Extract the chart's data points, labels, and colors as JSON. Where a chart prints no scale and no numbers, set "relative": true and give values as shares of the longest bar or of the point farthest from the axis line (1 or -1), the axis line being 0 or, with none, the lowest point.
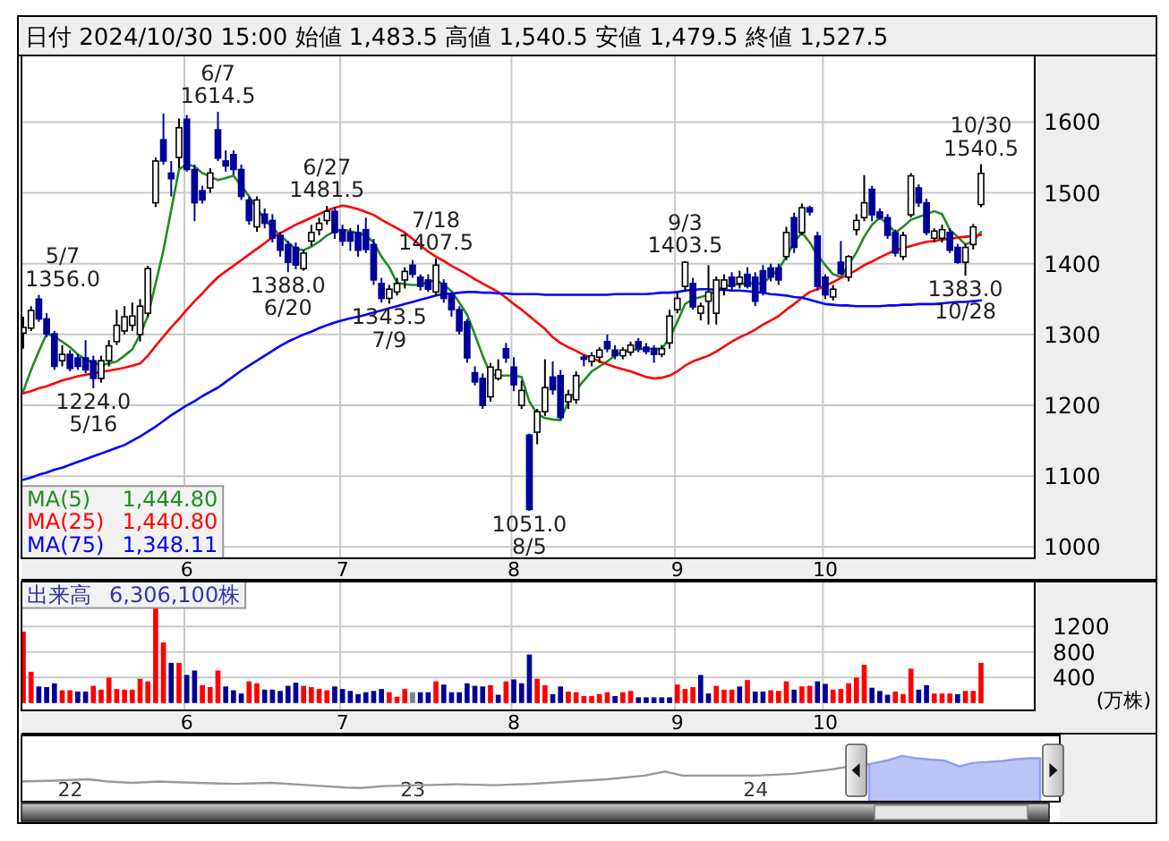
{
  "chart_data": [
    {
      "type": "candlestick",
      "title": "日付 2024/10/30 15:00 始値 1,483.5 高値 1,540.5 安値 1,479.5 終値 1,527.5",
      "categories": [
        null,
        null,
        null,
        null,
        null,
        null,
        null,
        null,
        null,
        null,
        null,
        null,
        null,
        null,
        null,
        null,
        null,
        null,
        null,
        null,
        null,
        "6",
        null,
        null,
        null,
        null,
        null,
        null,
        null,
        null,
        null,
        null,
        null,
        null,
        null,
        null,
        null,
        null,
        null,
        null,
        null,
        "7",
        null,
        null,
        null,
        null,
        null,
        null,
        null,
        null,
        null,
        null,
        null,
        null,
        null,
        null,
        null,
        null,
        null,
        null,
        null,
        null,
        null,
        "8",
        null,
        null,
        null,
        null,
        null,
        null,
        null,
        null,
        null,
        null,
        null,
        null,
        null,
        null,
        null,
        null,
        null,
        null,
        null,
        null,
        "9",
        null,
        null,
        null,
        null,
        null,
        null,
        null,
        null,
        null,
        null,
        null,
        null,
        null,
        null,
        null,
        null,
        null,
        null,
        "10",
        null,
        null,
        null,
        null,
        null,
        null,
        null,
        null,
        null,
        null,
        null,
        null,
        null,
        null,
        null,
        null,
        null,
        null,
        null,
        null
      ],
      "ohlc": [
        [
          1302,
          1325,
          1280,
          1310
        ],
        [
          1309,
          1340,
          1305,
          1334
        ],
        [
          1350,
          1356,
          1318,
          1322
        ],
        [
          1322,
          1330,
          1296,
          1301
        ],
        [
          1301,
          1305,
          1250,
          1255
        ],
        [
          1263,
          1285,
          1255,
          1272
        ],
        [
          1272,
          1278,
          1248,
          1252
        ],
        [
          1267,
          1272,
          1250,
          1255
        ],
        [
          1267,
          1292,
          1245,
          1250
        ],
        [
          1263,
          1270,
          1224,
          1238
        ],
        [
          1238,
          1270,
          1232,
          1263
        ],
        [
          1263,
          1292,
          1255,
          1284
        ],
        [
          1290,
          1335,
          1285,
          1313
        ],
        [
          1305,
          1340,
          1300,
          1325
        ],
        [
          1313,
          1345,
          1305,
          1326
        ],
        [
          1300,
          1350,
          1290,
          1340
        ],
        [
          1330,
          1397,
          1325,
          1393
        ],
        [
          1486,
          1550,
          1480,
          1545
        ],
        [
          1575,
          1612,
          1540,
          1545
        ],
        [
          1528,
          1545,
          1495,
          1520
        ],
        [
          1550,
          1605,
          1535,
          1592
        ],
        [
          1604,
          1610,
          1530,
          1533
        ],
        [
          1533,
          1540,
          1460,
          1486
        ],
        [
          1503,
          1510,
          1485,
          1490
        ],
        [
          1507,
          1535,
          1500,
          1528
        ],
        [
          1589,
          1614.5,
          1545,
          1549
        ],
        [
          1545,
          1560,
          1530,
          1538
        ],
        [
          1554,
          1560,
          1525,
          1533
        ],
        [
          1533,
          1540,
          1490,
          1495
        ],
        [
          1490,
          1495,
          1455,
          1461
        ],
        [
          1452,
          1495,
          1445,
          1490
        ],
        [
          1470,
          1478,
          1450,
          1457
        ],
        [
          1461,
          1470,
          1430,
          1436
        ],
        [
          1440,
          1445,
          1410,
          1419
        ],
        [
          1427,
          1432,
          1388,
          1402
        ],
        [
          1423,
          1430,
          1392,
          1398
        ],
        [
          1393,
          1420,
          1390,
          1415
        ],
        [
          1432,
          1455,
          1425,
          1444
        ],
        [
          1448,
          1465,
          1440,
          1457
        ],
        [
          1461,
          1481.5,
          1455,
          1474
        ],
        [
          1474,
          1480,
          1435,
          1444
        ],
        [
          1448,
          1455,
          1425,
          1432
        ],
        [
          1444,
          1450,
          1418,
          1432
        ],
        [
          1444,
          1455,
          1410,
          1419
        ],
        [
          1448,
          1465,
          1415,
          1420
        ],
        [
          1427,
          1435,
          1370,
          1377
        ],
        [
          1372,
          1380,
          1345,
          1351
        ],
        [
          1351,
          1370,
          1343.5,
          1364
        ],
        [
          1360,
          1380,
          1355,
          1372
        ],
        [
          1377,
          1395,
          1365,
          1389
        ],
        [
          1398,
          1405,
          1380,
          1385
        ],
        [
          1381,
          1385,
          1362,
          1368
        ],
        [
          1377,
          1385,
          1360,
          1364
        ],
        [
          1360,
          1407.5,
          1355,
          1398
        ],
        [
          1372,
          1378,
          1345,
          1351
        ],
        [
          1356,
          1360,
          1325,
          1335
        ],
        [
          1335,
          1340,
          1300,
          1305
        ],
        [
          1318,
          1322,
          1260,
          1267
        ],
        [
          1246,
          1255,
          1228,
          1233
        ],
        [
          1238,
          1245,
          1195,
          1200
        ],
        [
          1212,
          1260,
          1205,
          1254
        ],
        [
          1238,
          1265,
          1235,
          1250
        ],
        [
          1280,
          1288,
          1260,
          1267
        ],
        [
          1254,
          1268,
          1220,
          1229
        ],
        [
          1200,
          1235,
          1195,
          1221
        ],
        [
          1158,
          1160,
          1051,
          1053
        ],
        [
          1162,
          1195,
          1145,
          1191
        ],
        [
          1191,
          1265,
          1185,
          1225
        ],
        [
          1240,
          1262,
          1215,
          1222
        ],
        [
          1242,
          1250,
          1180,
          1183
        ],
        [
          1205,
          1222,
          1195,
          1215
        ],
        [
          1208,
          1248,
          1202,
          1242
        ],
        [
          1268,
          1272,
          1255,
          1265
        ],
        [
          1262,
          1275,
          1255,
          1270
        ],
        [
          1268,
          1282,
          1260,
          1278
        ],
        [
          1290,
          1300,
          1275,
          1280
        ],
        [
          1278,
          1285,
          1265,
          1270
        ],
        [
          1270,
          1282,
          1265,
          1278
        ],
        [
          1275,
          1290,
          1270,
          1285
        ],
        [
          1290,
          1295,
          1275,
          1280
        ],
        [
          1282,
          1288,
          1272,
          1276
        ],
        [
          1280,
          1285,
          1260,
          1272
        ],
        [
          1272,
          1285,
          1268,
          1280
        ],
        [
          1288,
          1335,
          1280,
          1326
        ],
        [
          1335,
          1360,
          1330,
          1351
        ],
        [
          1368,
          1403.5,
          1360,
          1402
        ],
        [
          1372,
          1380,
          1335,
          1339
        ],
        [
          1330,
          1345,
          1320,
          1340
        ],
        [
          1347,
          1398,
          1314,
          1360
        ],
        [
          1330,
          1382,
          1314,
          1377
        ],
        [
          1365,
          1385,
          1355,
          1377
        ],
        [
          1381,
          1388,
          1362,
          1368
        ],
        [
          1372,
          1390,
          1365,
          1381
        ],
        [
          1385,
          1395,
          1365,
          1368
        ],
        [
          1381,
          1388,
          1340,
          1347
        ],
        [
          1390,
          1398,
          1355,
          1360
        ],
        [
          1394,
          1400,
          1375,
          1381
        ],
        [
          1394,
          1400,
          1370,
          1377
        ],
        [
          1410,
          1452,
          1405,
          1444
        ],
        [
          1465,
          1472,
          1415,
          1423
        ],
        [
          1444,
          1485,
          1440,
          1479
        ],
        [
          1479,
          1482,
          1468,
          1473
        ],
        [
          1439,
          1445,
          1362,
          1368
        ],
        [
          1381,
          1385,
          1350,
          1356
        ],
        [
          1353,
          1370,
          1348,
          1364
        ],
        [
          1402,
          1432,
          1384,
          1386
        ],
        [
          1381,
          1412,
          1375,
          1410
        ],
        [
          1448,
          1470,
          1440,
          1461
        ],
        [
          1465,
          1525,
          1460,
          1486
        ],
        [
          1505,
          1510,
          1460,
          1469
        ],
        [
          1473,
          1478,
          1462,
          1465
        ],
        [
          1465,
          1470,
          1435,
          1440
        ],
        [
          1444,
          1448,
          1410,
          1415
        ],
        [
          1410,
          1445,
          1405,
          1440
        ],
        [
          1469,
          1528,
          1465,
          1524
        ],
        [
          1507,
          1512,
          1480,
          1486
        ],
        [
          1486,
          1492,
          1440,
          1444
        ],
        [
          1436,
          1450,
          1430,
          1446
        ],
        [
          1436,
          1455,
          1430,
          1448
        ],
        [
          1444,
          1450,
          1415,
          1419
        ],
        [
          1423,
          1428,
          1400,
          1402
        ],
        [
          1402,
          1428,
          1383,
          1423
        ],
        [
          1427,
          1456,
          1420,
          1452
        ],
        [
          1483.5,
          1540.5,
          1479.5,
          1527.5
        ]
      ],
      "colors": [
        "#ffffff",
        "#ffffff",
        "#000099",
        "#000099",
        "#000099",
        "#ffffff",
        "#000099",
        "#000099",
        "#000099",
        "#000099",
        "#ffffff",
        "#ffffff",
        "#ffffff",
        "#ffffff",
        "#ffffff",
        "#ffffff",
        "#ffffff",
        "#ffffff",
        "#000099",
        "#000099",
        "#ffffff",
        "#000099",
        "#000099",
        "#000099",
        "#ffffff",
        "#000099",
        "#000099",
        "#000099",
        "#000099",
        "#000099",
        "#ffffff",
        "#000099",
        "#000099",
        "#000099",
        "#000099",
        "#000099",
        "#ffffff",
        "#ffffff",
        "#ffffff",
        "#ffffff",
        "#000099",
        "#000099",
        "#000099",
        "#000099",
        "#000099",
        "#000099",
        "#000099",
        "#ffffff",
        "#ffffff",
        "#ffffff",
        "#000099",
        "#000099",
        "#000099",
        "#ffffff",
        "#000099",
        "#000099",
        "#000099",
        "#000099",
        "#000099",
        "#000099",
        "#ffffff",
        "#ffffff",
        "#000099",
        "#000099",
        "#ffffff",
        "#000099",
        "#ffffff",
        "#ffffff",
        "#000099",
        "#000099",
        "#ffffff",
        "#ffffff",
        "#000099",
        "#ffffff",
        "#ffffff",
        "#000099",
        "#000099",
        "#ffffff",
        "#ffffff",
        "#000099",
        "#000099",
        "#000099",
        "#ffffff",
        "#ffffff",
        "#ffffff",
        "#ffffff",
        "#000099",
        "#ffffff",
        "#ffffff",
        "#ffffff",
        "#ffffff",
        "#000099",
        "#ffffff",
        "#000099",
        "#000099",
        "#000099",
        "#000099",
        "#000099",
        "#ffffff",
        "#000099",
        "#ffffff",
        "#000099",
        "#000099",
        "#000099",
        "#ffffff",
        "#000099",
        "#ffffff",
        "#ffffff",
        "#ffffff",
        "#000099",
        "#000099",
        "#000099",
        "#000099",
        "#ffffff",
        "#ffffff",
        "#000099",
        "#000099",
        "#ffffff",
        "#ffffff",
        "#000099",
        "#000099",
        "#ffffff",
        "#ffffff",
        "#ffffff"
      ],
      "value_labels": [
        null,
        null,
        "5/7\n1356.0",
        null,
        null,
        null,
        null,
        null,
        null,
        "1224.0\n5/16",
        null,
        null,
        null,
        null,
        null,
        null,
        null,
        null,
        null,
        null,
        null,
        null,
        null,
        null,
        null,
        "6/7\n1614.5",
        null,
        null,
        null,
        null,
        null,
        null,
        null,
        null,
        "1388.0\n6/20",
        null,
        null,
        null,
        null,
        "6/27\n1481.5",
        null,
        null,
        null,
        null,
        null,
        null,
        null,
        "1343.5\n7/9",
        null,
        null,
        null,
        null,
        null,
        "7/18\n1407.5",
        null,
        null,
        null,
        null,
        null,
        null,
        null,
        null,
        null,
        null,
        null,
        "1051.0\n8/5",
        null,
        null,
        null,
        null,
        null,
        null,
        null,
        null,
        null,
        null,
        null,
        null,
        null,
        null,
        null,
        null,
        null,
        null,
        null,
        "9/3\n1403.5",
        null,
        null,
        null,
        null,
        null,
        null,
        null,
        null,
        null,
        null,
        null,
        null,
        null,
        null,
        null,
        null,
        null,
        null,
        null,
        null,
        null,
        null,
        null,
        null,
        null,
        null,
        null,
        null,
        null,
        null,
        null,
        null,
        null,
        null,
        null,
        "1383.0\n10/28",
        null,
        "10/30\n1540.5"
      ],
      "series": [
        {
          "name": "MA(5)",
          "type": "line",
          "color": "#228b22",
          "values": [
            1220,
            1250,
            1276,
            1301,
            1297,
            1290,
            1282,
            1272,
            1265,
            1260,
            1257,
            1259,
            1262,
            1270,
            1279,
            1300,
            1326,
            1372,
            1419,
            1476,
            1533,
            1541,
            1537,
            1528,
            1523,
            1518,
            1521,
            1524,
            1510,
            1495,
            1478,
            1463,
            1451,
            1440,
            1430,
            1421,
            1419,
            1424,
            1431,
            1440,
            1446,
            1448,
            1446,
            1443,
            1440,
            1430,
            1410,
            1395,
            1373,
            1371,
            1370,
            1370,
            1374,
            1377,
            1370,
            1361,
            1345,
            1328,
            1300,
            1270,
            1244,
            1242,
            1242,
            1242,
            1240,
            1205,
            1188,
            1182,
            1180,
            1179,
            1205,
            1222,
            1235,
            1248,
            1255,
            1262,
            1270,
            1276,
            1278,
            1279,
            1280,
            1280,
            1280,
            1295,
            1318,
            1343,
            1350,
            1353,
            1356,
            1362,
            1368,
            1370,
            1371,
            1372,
            1372,
            1372,
            1382,
            1392,
            1410,
            1430,
            1444,
            1430,
            1412,
            1398,
            1385,
            1381,
            1398,
            1416,
            1438,
            1455,
            1465,
            1456,
            1444,
            1452,
            1462,
            1466,
            1470,
            1474,
            1470,
            1448,
            1438,
            1427,
            1432,
            1444.8
          ]
        },
        {
          "name": "MA(25)",
          "type": "line",
          "color": "#ff0000",
          "values": [
            1217,
            1220,
            1224,
            1227,
            1231,
            1235,
            1238,
            1241,
            1243,
            1245,
            1247,
            1249,
            1251,
            1253,
            1256,
            1259,
            1270,
            1284,
            1297,
            1310,
            1322,
            1335,
            1347,
            1358,
            1370,
            1381,
            1389,
            1397,
            1405,
            1413,
            1421,
            1429,
            1437,
            1443,
            1449,
            1455,
            1460,
            1465,
            1470,
            1475,
            1479,
            1482,
            1480,
            1477,
            1473,
            1469,
            1462,
            1456,
            1450,
            1444,
            1435,
            1426,
            1417,
            1410,
            1404,
            1397,
            1391,
            1385,
            1378,
            1372,
            1366,
            1360,
            1352,
            1343,
            1335,
            1326,
            1317,
            1308,
            1296,
            1288,
            1282,
            1277,
            1271,
            1267,
            1262,
            1258,
            1254,
            1251,
            1248,
            1244,
            1240,
            1238,
            1239,
            1242,
            1248,
            1256,
            1262,
            1266,
            1270,
            1276,
            1283,
            1290,
            1296,
            1301,
            1307,
            1314,
            1320,
            1326,
            1335,
            1343,
            1352,
            1360,
            1364,
            1369,
            1374,
            1380,
            1385,
            1391,
            1398,
            1403,
            1409,
            1414,
            1419,
            1422,
            1425,
            1428,
            1431,
            1432,
            1434,
            1435,
            1437,
            1438,
            1439,
            1440.8
          ]
        },
        {
          "name": "MA(75)",
          "type": "line",
          "color": "#0000ff",
          "values": [
            1095,
            1098,
            1102,
            1105,
            1109,
            1112,
            1116,
            1120,
            1124,
            1128,
            1132,
            1136,
            1140,
            1144,
            1150,
            1156,
            1163,
            1170,
            1178,
            1186,
            1193,
            1200,
            1206,
            1213,
            1219,
            1225,
            1233,
            1241,
            1249,
            1256,
            1263,
            1270,
            1277,
            1284,
            1290,
            1295,
            1300,
            1304,
            1309,
            1313,
            1317,
            1320,
            1323,
            1325,
            1328,
            1331,
            1334,
            1337,
            1340,
            1343,
            1346,
            1349,
            1352,
            1355,
            1357,
            1358,
            1359,
            1360,
            1360,
            1359,
            1359,
            1358,
            1358,
            1357,
            1357,
            1357,
            1357,
            1356,
            1356,
            1356,
            1356,
            1356,
            1356,
            1356,
            1356,
            1356,
            1357,
            1357,
            1357,
            1357,
            1357,
            1358,
            1359,
            1359,
            1360,
            1362,
            1363,
            1364,
            1364,
            1363,
            1363,
            1362,
            1362,
            1361,
            1360,
            1359,
            1357,
            1356,
            1355,
            1353,
            1352,
            1349,
            1346,
            1343,
            1342,
            1341,
            1341,
            1340,
            1340,
            1340,
            1340,
            1341,
            1341,
            1342,
            1342,
            1343,
            1343,
            1343,
            1344,
            1345,
            1346,
            1346,
            1347,
            1348.11
          ]
        }
      ],
      "annotations": [
        "1,444.80",
        "1,440.80",
        "1,348.11"
      ],
      "ylim": [
        984,
        1694
      ],
      "yticks": [
        1000,
        1100,
        1200,
        1300,
        1400,
        1500,
        1600
      ],
      "grid": true,
      "legend": "bottom left"
    },
    {
      "type": "bar",
      "ylabel": "(万株)",
      "categories": [
        null,
        null,
        null,
        null,
        null,
        null,
        null,
        null,
        null,
        null,
        null,
        null,
        null,
        null,
        null,
        null,
        null,
        null,
        null,
        null,
        null,
        "6",
        null,
        null,
        null,
        null,
        null,
        null,
        null,
        null,
        null,
        null,
        null,
        null,
        null,
        null,
        null,
        null,
        null,
        null,
        null,
        "7",
        null,
        null,
        null,
        null,
        null,
        null,
        null,
        null,
        null,
        null,
        null,
        null,
        null,
        null,
        null,
        null,
        null,
        null,
        null,
        null,
        null,
        "8",
        null,
        null,
        null,
        null,
        null,
        null,
        null,
        null,
        null,
        null,
        null,
        null,
        null,
        null,
        null,
        null,
        null,
        null,
        null,
        null,
        "9",
        null,
        null,
        null,
        null,
        null,
        null,
        null,
        null,
        null,
        null,
        null,
        null,
        null,
        null,
        null,
        null,
        null,
        null,
        "10",
        null,
        null,
        null,
        null,
        null,
        null,
        null,
        null,
        null,
        null,
        null,
        null,
        null,
        null,
        null,
        null,
        null,
        null,
        null,
        null
      ],
      "series": [
        {
          "name": "出来高",
          "values": [
            1120,
            490,
            260,
            250,
            310,
            200,
            200,
            180,
            180,
            270,
            210,
            400,
            220,
            210,
            210,
            380,
            340,
            1480,
            950,
            630,
            630,
            440,
            510,
            280,
            250,
            510,
            260,
            200,
            150,
            340,
            310,
            210,
            210,
            190,
            270,
            320,
            270,
            250,
            220,
            200,
            260,
            220,
            190,
            140,
            170,
            190,
            220,
            170,
            100,
            220,
            170,
            170,
            170,
            340,
            290,
            170,
            170,
            310,
            270,
            260,
            280,
            130,
            340,
            370,
            310,
            760,
            380,
            280,
            140,
            260,
            180,
            170,
            110,
            110,
            140,
            170,
            110,
            170,
            190,
            90,
            90,
            90,
            90,
            90,
            290,
            220,
            250,
            440,
            150,
            270,
            210,
            210,
            260,
            360,
            180,
            180,
            200,
            190,
            340,
            210,
            260,
            270,
            340,
            300,
            210,
            220,
            310,
            400,
            600,
            240,
            190,
            130,
            180,
            140,
            540,
            210,
            280,
            150,
            150,
            150,
            140,
            190,
            190,
            630.61
          ],
          "colors": [
            "#ff0000",
            "#ff0000",
            "#000099",
            "#000099",
            "#000099",
            "#ff0000",
            "#ff0000",
            "#000099",
            "#000099",
            "#ff0000",
            "#ff0000",
            "#ff0000",
            "#ff0000",
            "#ff0000",
            "#ff0000",
            "#ff0000",
            "#ff0000",
            "#ff0000",
            "#ff0000",
            "#000099",
            "#ff0000",
            "#000099",
            "#000099",
            "#ff0000",
            "#ff0000",
            "#ff0000",
            "#000099",
            "#000099",
            "#000099",
            "#ff0000",
            "#ff0000",
            "#000099",
            "#000099",
            "#000099",
            "#000099",
            "#000099",
            "#ff0000",
            "#ff0000",
            "#ff0000",
            "#ff0000",
            "#000099",
            "#000099",
            "#000099",
            "#000099",
            "#000099",
            "#000099",
            "#000099",
            "#ff0000",
            "#ff0000",
            "#ff0000",
            "#808080",
            "#000099",
            "#000099",
            "#ff0000",
            "#000099",
            "#000099",
            "#000099",
            "#000099",
            "#000099",
            "#000099",
            "#ff0000",
            "#000099",
            "#ff0000",
            "#000099",
            "#000099",
            "#000099",
            "#ff0000",
            "#ff0000",
            "#000099",
            "#000099",
            "#ff0000",
            "#ff0000",
            "#ff0000",
            "#ff0000",
            "#ff0000",
            "#ff0000",
            "#000099",
            "#ff0000",
            "#ff0000",
            "#000099",
            "#000099",
            "#000099",
            "#000099",
            "#000099",
            "#ff0000",
            "#ff0000",
            "#ff0000",
            "#000099",
            "#000099",
            "#ff0000",
            "#ff0000",
            "#ff0000",
            "#000099",
            "#ff0000",
            "#000099",
            "#000099",
            "#ff0000",
            "#ff0000",
            "#ff0000",
            "#000099",
            "#ff0000",
            "#ff0000",
            "#000099",
            "#000099",
            "#ff0000",
            "#ff0000",
            "#ff0000",
            "#ff0000",
            "#ff0000",
            "#000099",
            "#000099",
            "#000099",
            "#ff0000",
            "#ff0000",
            "#ff0000",
            "#000099",
            "#000099",
            "#ff0000",
            "#ff0000",
            "#ff0000",
            "#000099",
            "#ff0000",
            "#ff0000",
            "#ff0000"
          ]
        }
      ],
      "annotations": [
        "6,306,100株"
      ],
      "ylim": [
        -115,
        1905
      ],
      "yticks": [
        400,
        800,
        1200
      ],
      "grid": true,
      "legend": "top left"
    },
    {
      "type": "line",
      "relative": true,
      "xlim": [
        "2021-11-10",
        "2024-11-20"
      ],
      "xticks": [
        {
          "value": "2022-01-01",
          "label": "22"
        },
        {
          "value": "2023-01-01",
          "label": "23"
        },
        {
          "value": "2024-01-01",
          "label": "24"
        }
      ],
      "series": [
        {
          "color": "#999999",
          "x": [
            "2021-11-10",
            "2021-12-15",
            "2022-01-20",
            "2022-02-10",
            "2022-03-08",
            "2022-04-05",
            "2022-05-15",
            "2022-06-25",
            "2022-08-03",
            "2022-09-12",
            "2022-10-22",
            "2022-11-06",
            "2022-12-01",
            "2023-01-08",
            "2023-02-17",
            "2023-03-28",
            "2023-05-08",
            "2023-06-17",
            "2023-07-27",
            "2023-09-05",
            "2023-09-27",
            "2023-10-15",
            "2023-11-22",
            "2024-01-01",
            "2024-02-10",
            "2024-03-20",
            "2024-04-10",
            "2024-05-01"
          ],
          "values": [
            0.44,
            0.46,
            0.49,
            0.44,
            0.41,
            0.44,
            0.41,
            0.39,
            0.41,
            0.36,
            0.31,
            0.3,
            0.34,
            0.36,
            0.38,
            0.36,
            0.39,
            0.44,
            0.49,
            0.57,
            0.66,
            0.57,
            0.57,
            0.57,
            0.61,
            0.7,
            0.77,
            0.82
          ]
        },
        {
          "type": "area",
          "color": "#8c9ef0",
          "x": [
            "2024-05-01",
            "2024-05-20",
            "2024-06-05",
            "2024-06-20",
            "2024-07-05",
            "2024-07-20",
            "2024-08-05",
            "2024-08-20",
            "2024-09-05",
            "2024-09-20",
            "2024-10-05",
            "2024-10-20",
            "2024-10-30"
          ],
          "values": [
            0.82,
            0.9,
            1,
            0.95,
            0.92,
            0.9,
            0.77,
            0.85,
            0.87,
            0.89,
            0.93,
            0.95,
            0.95
          ]
        }
      ]
    }
  ]
}
